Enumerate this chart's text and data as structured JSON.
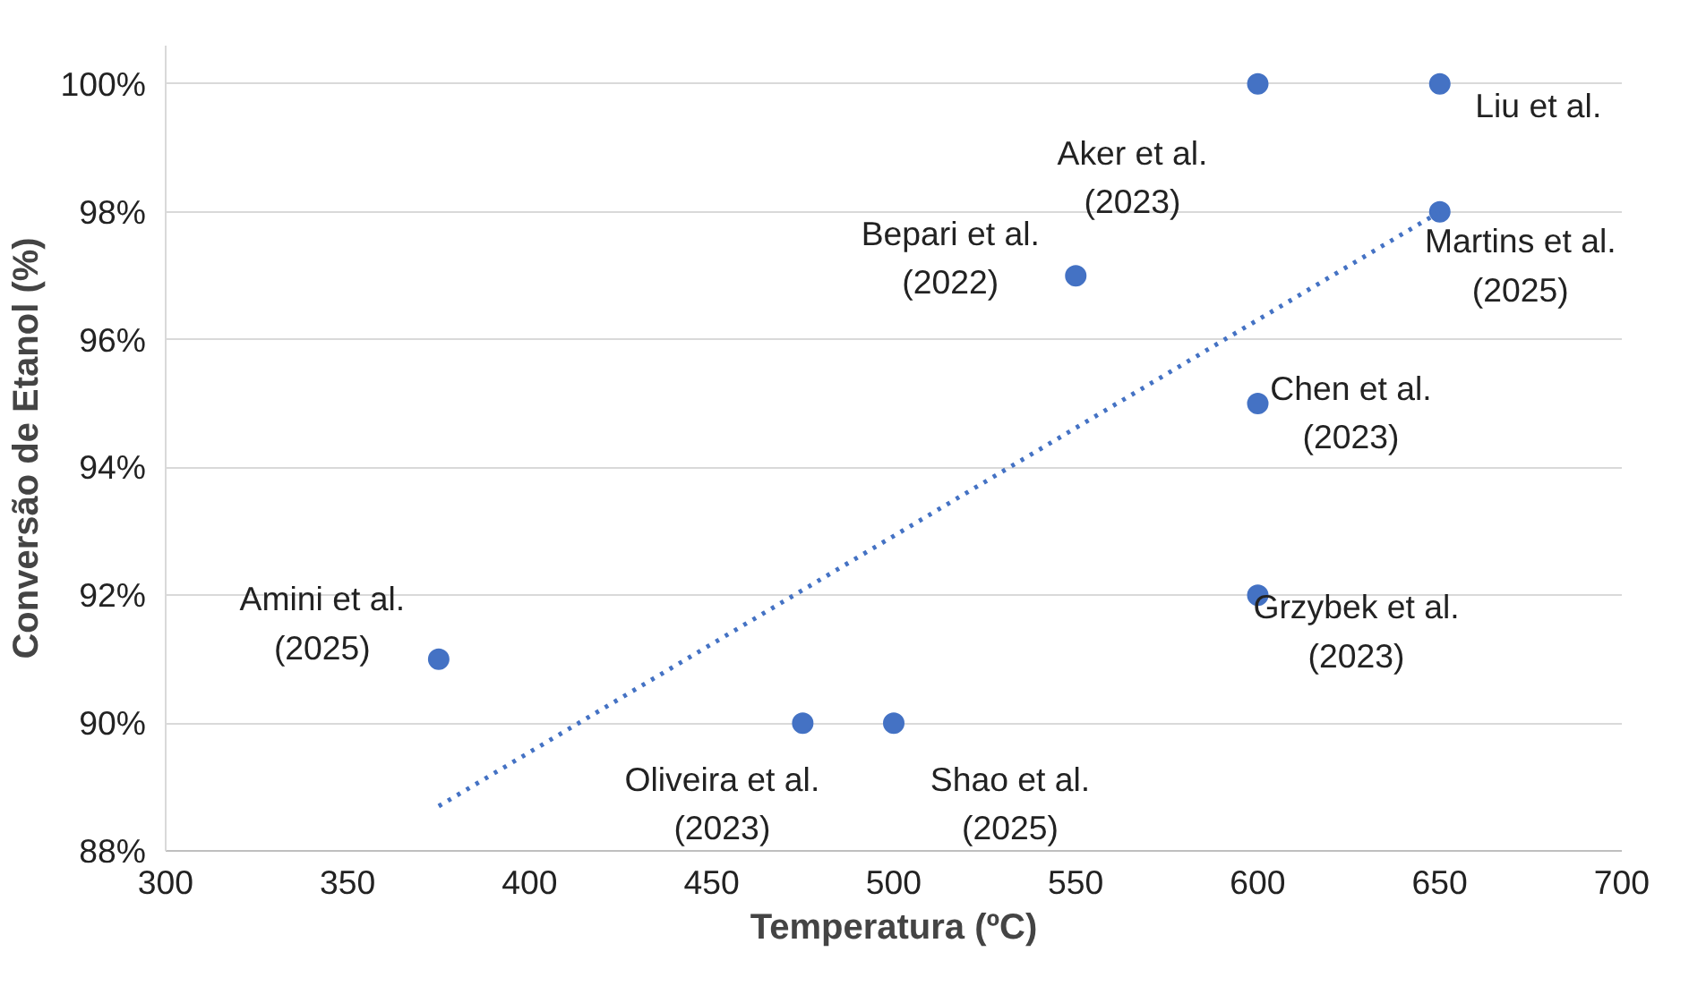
{
  "chart_data": {
    "type": "scatter",
    "xlabel": "Temperatura (ºC)",
    "ylabel": "Conversão de Etanol (%)",
    "xlim": [
      300,
      700
    ],
    "xticks": [
      300,
      350,
      400,
      450,
      500,
      550,
      600,
      650,
      700
    ],
    "ylim": [
      88,
      100.6
    ],
    "yticks": [
      {
        "value": 88,
        "label": "88%"
      },
      {
        "value": 90,
        "label": "90%"
      },
      {
        "value": 92,
        "label": "92%"
      },
      {
        "value": 94,
        "label": "94%"
      },
      {
        "value": 96,
        "label": "96%"
      },
      {
        "value": 98,
        "label": "98%"
      },
      {
        "value": 100,
        "label": "100%"
      }
    ],
    "grid": "y",
    "marker": "circle",
    "series": [
      {
        "color": "#4472c4",
        "x": [
          375,
          475,
          500,
          550,
          600,
          600,
          600,
          650,
          650
        ],
        "values": [
          91,
          90,
          90,
          97,
          100,
          95,
          92,
          100,
          98
        ]
      },
      {
        "type": "line",
        "marker": "none",
        "color": "#4472c4",
        "line_style": "dotted",
        "x": [
          375,
          650
        ],
        "values": [
          88.7,
          98.0
        ]
      }
    ],
    "annotations": [
      {
        "text": "Amini et al.\n(2025)",
        "x": 375,
        "y": 91
      },
      {
        "text": "Oliveira et al.\n(2023)",
        "x": 475,
        "y": 90
      },
      {
        "text": "Shao et al.\n(2025)",
        "x": 500,
        "y": 90
      },
      {
        "text": "Bepari et al.\n(2022)",
        "x": 550,
        "y": 97
      },
      {
        "text": "Aker et al.\n(2023)",
        "x": 600,
        "y": 100
      },
      {
        "text": "Chen et al.\n(2023)",
        "x": 600,
        "y": 95
      },
      {
        "text": "Grzybek et al.\n(2023)",
        "x": 600,
        "y": 92
      },
      {
        "text": "Liu et al.",
        "x": 650,
        "y": 100
      },
      {
        "text": "Martins et al.\n(2025)",
        "x": 650,
        "y": 98
      }
    ]
  }
}
